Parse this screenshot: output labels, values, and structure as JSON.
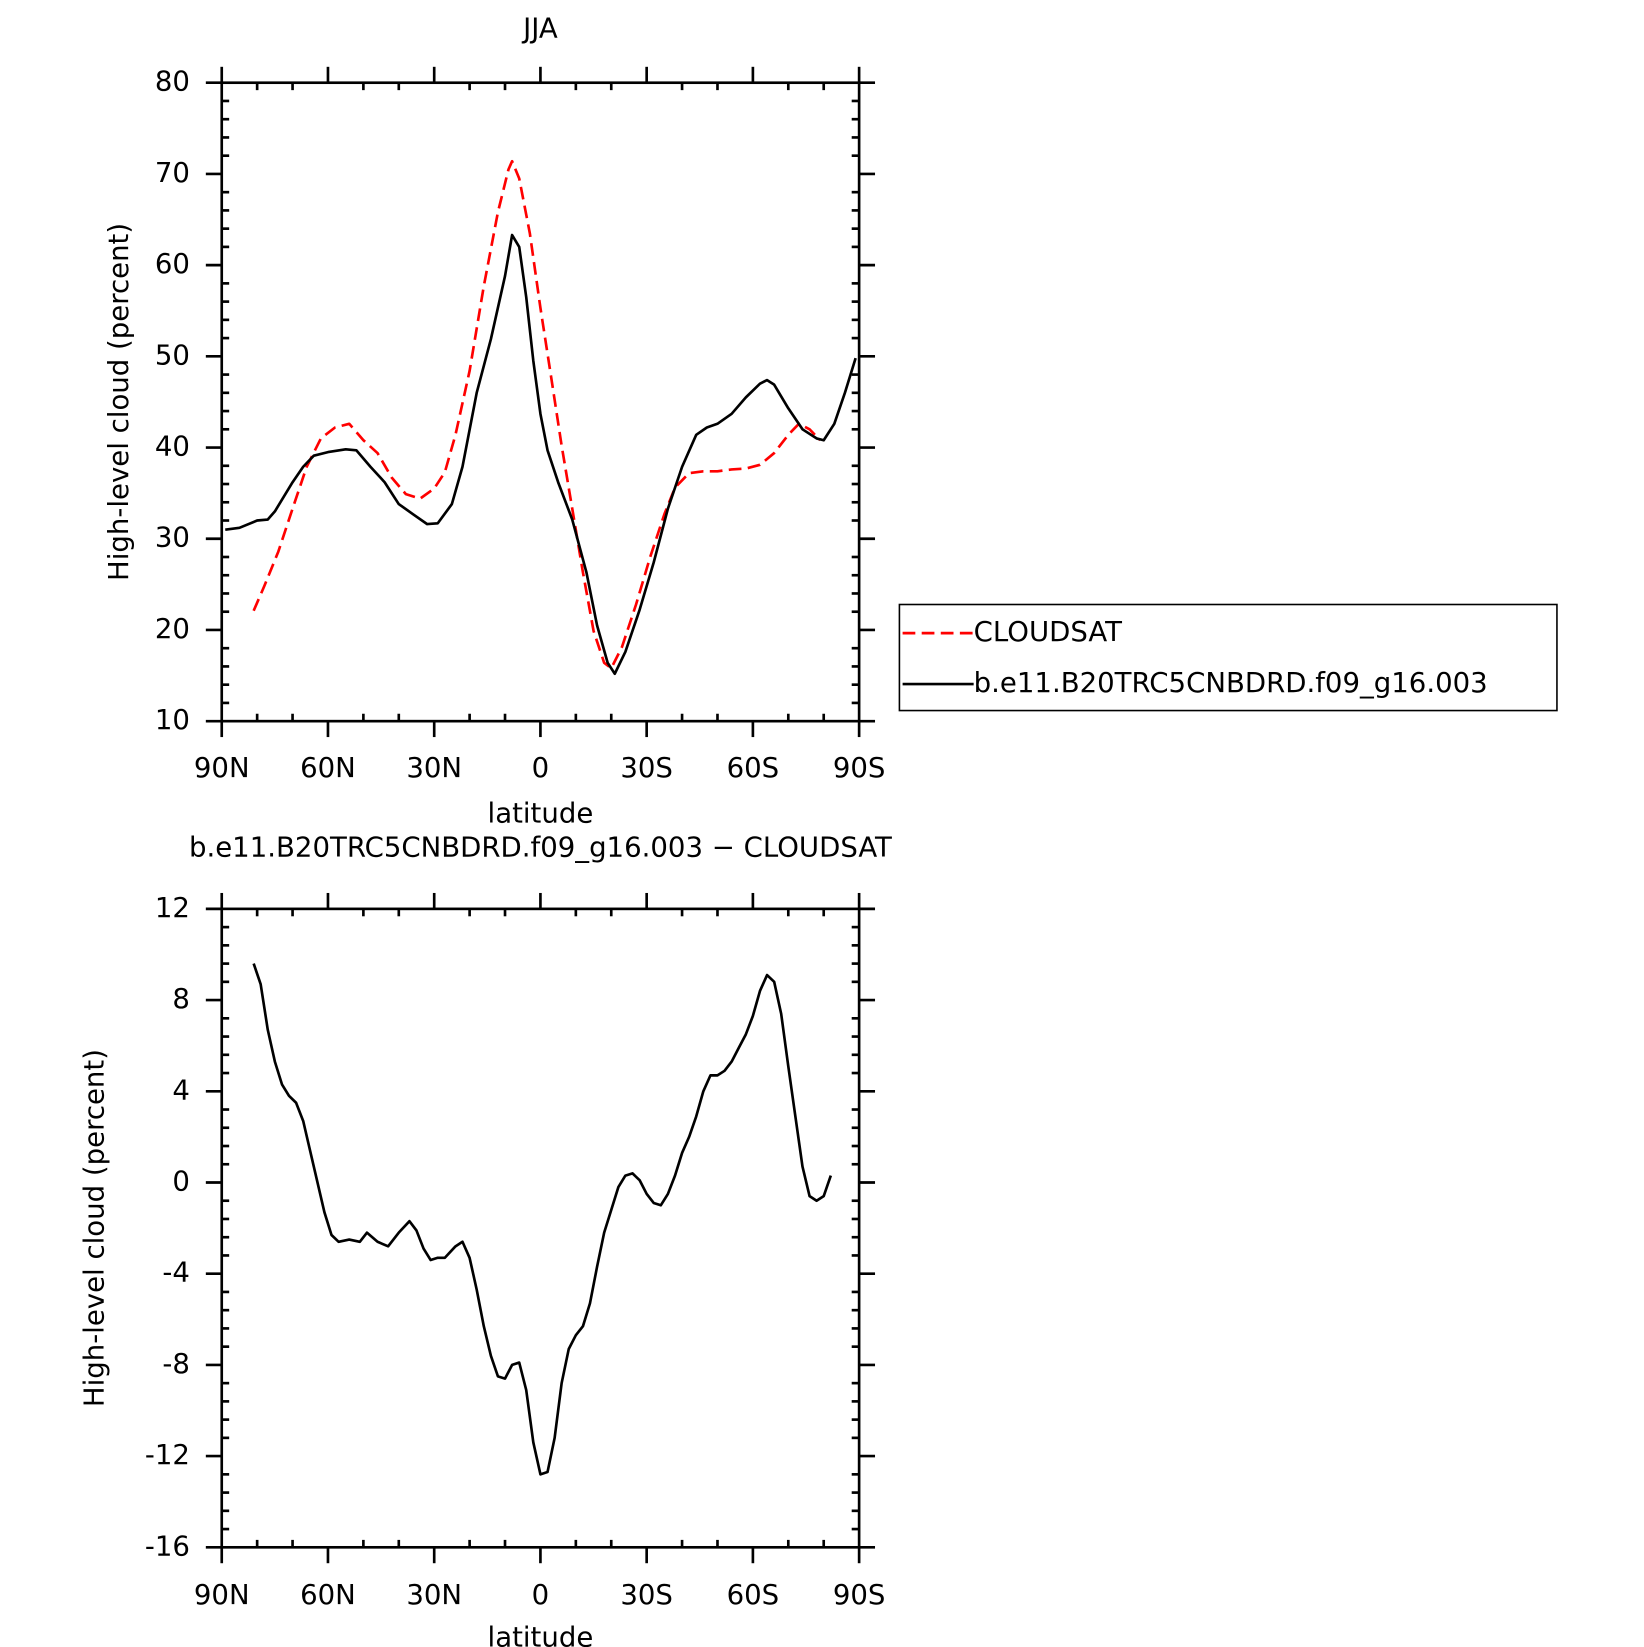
{
  "chart_data": [
    {
      "type": "line",
      "title": "JJA",
      "x_label": "latitude",
      "y_label": "High-level cloud (percent)",
      "xlim": [
        90,
        -90
      ],
      "xticks": [
        {
          "value": 90,
          "label": "90N"
        },
        {
          "value": 60,
          "label": "60N"
        },
        {
          "value": 30,
          "label": "30N"
        },
        0,
        {
          "value": -30,
          "label": "30S"
        },
        {
          "value": -60,
          "label": "60S"
        },
        {
          "value": -90,
          "label": "90S"
        }
      ],
      "ylim": [
        10,
        80
      ],
      "yticks": [
        10,
        20,
        30,
        40,
        50,
        60,
        70,
        80
      ],
      "series": [
        {
          "name": "CLOUDSAT",
          "color": "#ff0000",
          "dash": true,
          "x": [
            81,
            78,
            74,
            70,
            66,
            62,
            58,
            54,
            50,
            46,
            42,
            38,
            34,
            30,
            27,
            24,
            20,
            16,
            12,
            9,
            8,
            6,
            3,
            0,
            -3,
            -6,
            -9,
            -12,
            -15,
            -18,
            -20,
            -23,
            -27,
            -31,
            -35,
            -38,
            -42,
            -46,
            -50,
            -54,
            -58,
            -62,
            -66,
            -70,
            -73,
            -76,
            -79
          ],
          "values": [
            22.1,
            24.8,
            28.6,
            33.3,
            37.9,
            41,
            42.2,
            42.6,
            40.8,
            39.4,
            36.7,
            34.9,
            34.4,
            35.5,
            37.3,
            41.4,
            48.4,
            57.7,
            65.8,
            70.5,
            71.4,
            69.5,
            63.5,
            55.3,
            47.8,
            40.2,
            33.3,
            26.3,
            19.9,
            16.4,
            15.8,
            18.1,
            22.8,
            28,
            32.7,
            35.6,
            37.2,
            37.4,
            37.4,
            37.6,
            37.7,
            38.1,
            39.4,
            41.4,
            42.6,
            42,
            40.8
          ]
        },
        {
          "name": "b.e11.B20TRC5CNBDRD.f09_g16.003",
          "color": "#000000",
          "dash": false,
          "x": [
            89,
            85,
            80,
            77,
            75,
            70,
            67,
            64,
            60,
            55,
            52,
            48,
            44,
            40,
            36,
            32,
            29,
            25,
            22,
            18,
            14,
            10,
            8,
            6,
            4,
            2,
            0,
            -2,
            -5,
            -9,
            -13,
            -16,
            -19,
            -21,
            -24,
            -28,
            -32,
            -36,
            -40,
            -44,
            -47,
            -50,
            -54,
            -58,
            -62,
            -64,
            -66,
            -70,
            -74,
            -78,
            -80,
            -83,
            -86,
            -89
          ],
          "values": [
            31,
            31.2,
            32,
            32.1,
            33,
            36.2,
            37.9,
            39.1,
            39.5,
            39.8,
            39.7,
            37.9,
            36.2,
            33.8,
            32.7,
            31.6,
            31.7,
            33.8,
            37.9,
            46,
            51.9,
            58.8,
            63.3,
            62,
            56.5,
            49.5,
            43.7,
            39.7,
            36.2,
            32.1,
            26.3,
            20.5,
            16.4,
            15.2,
            17.6,
            22.2,
            27.4,
            33.3,
            37.9,
            41.4,
            42.2,
            42.6,
            43.7,
            45.5,
            47,
            47.4,
            46.9,
            44.3,
            42,
            41,
            40.8,
            42.6,
            46,
            49.8
          ]
        }
      ]
    },
    {
      "type": "line",
      "title": "b.e11.B20TRC5CNBDRD.f09_g16.003 − CLOUDSAT",
      "x_label": "latitude",
      "y_label": "High-level cloud (percent)",
      "xlim": [
        90,
        -90
      ],
      "xticks": [
        {
          "value": 90,
          "label": "90N"
        },
        {
          "value": 60,
          "label": "60N"
        },
        {
          "value": 30,
          "label": "30N"
        },
        0,
        {
          "value": -30,
          "label": "30S"
        },
        {
          "value": -60,
          "label": "60S"
        },
        {
          "value": -90,
          "label": "90S"
        }
      ],
      "ylim": [
        -16,
        12
      ],
      "yticks": [
        -16,
        -12,
        -8,
        -4,
        0,
        4,
        8,
        12
      ],
      "color": "#000000",
      "x": [
        81,
        79,
        77,
        75,
        73,
        71,
        69,
        67,
        64,
        61,
        59,
        57,
        54,
        51,
        49,
        46,
        43,
        40,
        37,
        35,
        33,
        31,
        29,
        27,
        24,
        22,
        20,
        18,
        16,
        14,
        12,
        10,
        8,
        6,
        4,
        2,
        0,
        -2,
        -4,
        -6,
        -8,
        -10,
        -12,
        -14,
        -16,
        -18,
        -20,
        -22,
        -24,
        -26,
        -28,
        -30,
        -32,
        -34,
        -36,
        -38,
        -40,
        -42,
        -44,
        -46,
        -48,
        -50,
        -52,
        -54,
        -56,
        -58,
        -60,
        -62,
        -64,
        -66,
        -68,
        -70,
        -72,
        -74,
        -76,
        -78,
        -80,
        -82
      ],
      "values": [
        9.6,
        8.7,
        6.7,
        5.3,
        4.3,
        3.8,
        3.5,
        2.7,
        0.7,
        -1.3,
        -2.3,
        -2.6,
        -2.5,
        -2.6,
        -2.2,
        -2.6,
        -2.8,
        -2.2,
        -1.7,
        -2.1,
        -2.9,
        -3.4,
        -3.3,
        -3.3,
        -2.8,
        -2.6,
        -3.3,
        -4.7,
        -6.3,
        -7.6,
        -8.5,
        -8.6,
        -8,
        -7.9,
        -9.1,
        -11.4,
        -12.8,
        -12.7,
        -11.2,
        -8.8,
        -7.3,
        -6.7,
        -6.3,
        -5.3,
        -3.7,
        -2.2,
        -1.2,
        -0.2,
        0.3,
        0.4,
        0.1,
        -0.5,
        -0.9,
        -1,
        -0.5,
        0.3,
        1.3,
        2,
        2.9,
        4,
        4.7,
        4.7,
        4.9,
        5.3,
        5.9,
        6.5,
        7.3,
        8.4,
        9.1,
        8.8,
        7.4,
        5.1,
        2.9,
        0.7,
        -0.6,
        -0.8,
        -0.6,
        0.3
      ]
    }
  ]
}
